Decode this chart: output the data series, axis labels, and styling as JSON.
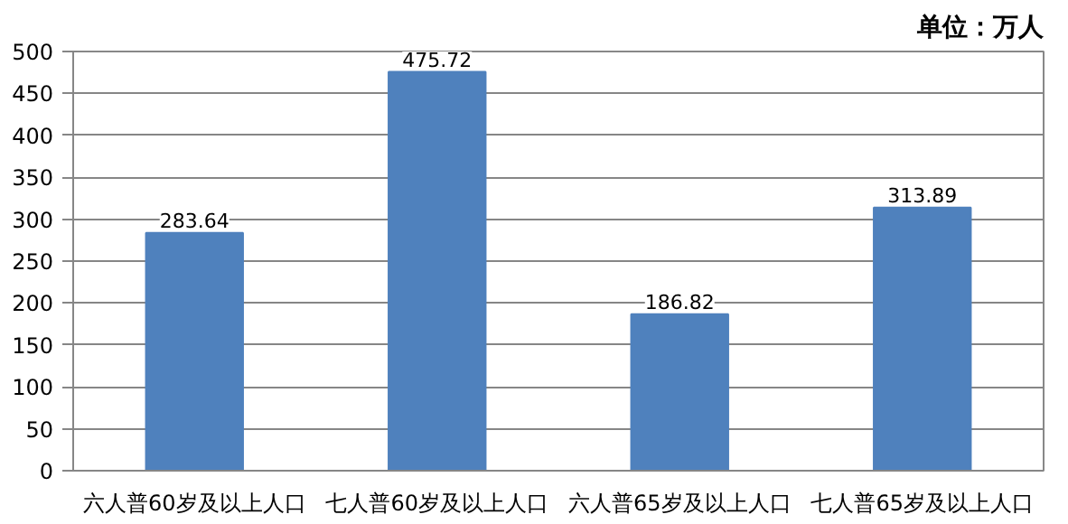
{
  "chart_data": {
    "type": "bar",
    "annotations": [
      "单位：万人"
    ],
    "categories": [
      "六人普60岁及以上人口",
      "七人普60岁及以上人口",
      "六人普65岁及以上人口",
      "七人普65岁及以上人口"
    ],
    "values": [
      283.64,
      475.72,
      186.82,
      313.89
    ],
    "color": "#4f81bd",
    "ylim": [
      0,
      500
    ],
    "yticks": [
      0,
      50,
      100,
      150,
      200,
      250,
      300,
      350,
      400,
      450,
      500
    ],
    "grid": "y",
    "data_labels": true
  }
}
